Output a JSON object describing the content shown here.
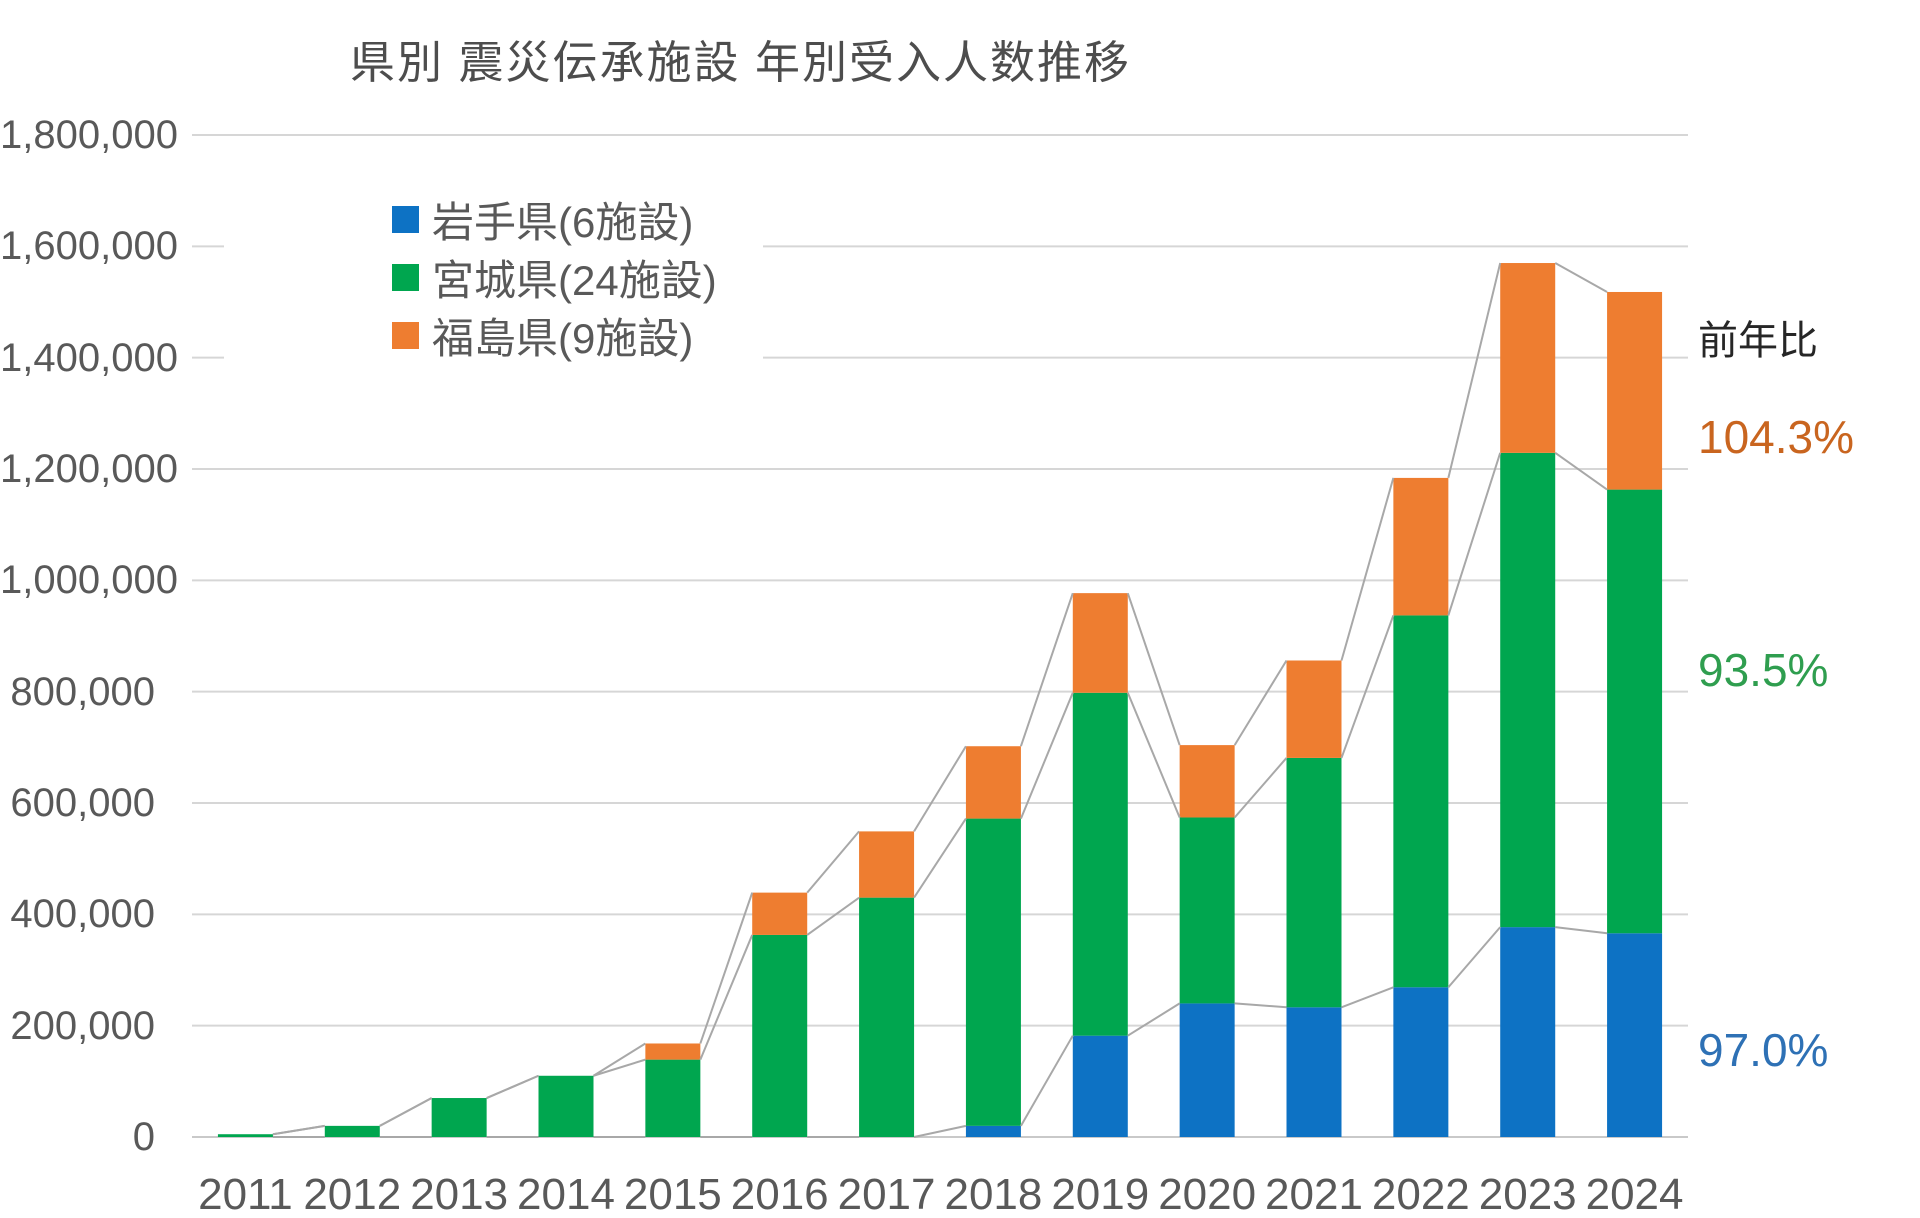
{
  "title": "県別 震災伝承施設 年別受入人数推移",
  "legend": {
    "items": [
      {
        "label": "岩手県(6施設)",
        "color": "#0d72c4"
      },
      {
        "label": "宮城県(24施設)",
        "color": "#00a64f"
      },
      {
        "label": "福島県(9施設)",
        "color": "#ee7d30"
      }
    ]
  },
  "annotations": {
    "heading": "前年比",
    "items": [
      {
        "label": "104.3%",
        "color": "#c9651f"
      },
      {
        "label": "93.5%",
        "color": "#2f9e4f"
      },
      {
        "label": "97.0%",
        "color": "#2e71b5"
      }
    ]
  },
  "chart_data": {
    "type": "bar",
    "stacked": true,
    "title": "県別 震災伝承施設 年別受入人数推移",
    "categories": [
      "2011",
      "2012",
      "2013",
      "2014",
      "2015",
      "2016",
      "2017",
      "2018",
      "2019",
      "2020",
      "2021",
      "2022",
      "2023",
      "2024"
    ],
    "series": [
      {
        "name": "岩手県(6施設)",
        "color": "#0d72c4",
        "values": [
          0,
          0,
          0,
          0,
          0,
          0,
          0,
          20000,
          182000,
          240000,
          233000,
          269000,
          377000,
          366000
        ]
      },
      {
        "name": "宮城県(24施設)",
        "color": "#00a64f",
        "values": [
          5000,
          20000,
          70000,
          110000,
          139000,
          363000,
          430000,
          552000,
          616000,
          334000,
          448000,
          668000,
          852000,
          797000
        ]
      },
      {
        "name": "福島県(9施設)",
        "color": "#ee7d30",
        "values": [
          0,
          0,
          0,
          0,
          29000,
          76000,
          119000,
          130000,
          179000,
          130000,
          175000,
          247000,
          341000,
          355000
        ]
      }
    ],
    "totals": [
      5000,
      20000,
      70000,
      110000,
      168000,
      439000,
      549000,
      702000,
      977000,
      704000,
      856000,
      1184000,
      1570000,
      1518000
    ],
    "xlabel": "",
    "ylabel": "",
    "ylim": [
      0,
      1800000
    ],
    "ytick_step": 200000,
    "grid": true,
    "series_lines": true,
    "legend_position": "inside-top-left",
    "annotation_heading": "前年比",
    "annotation_values": {
      "福島県前年比": "104.3%",
      "宮城県前年比": "93.5%",
      "岩手県前年比": "97.0%"
    },
    "colors": {
      "gridline": "#d6d6d6",
      "baseline": "#c9c9c9",
      "series_line": "#a8a8a8",
      "axis_text": "#595959"
    }
  }
}
